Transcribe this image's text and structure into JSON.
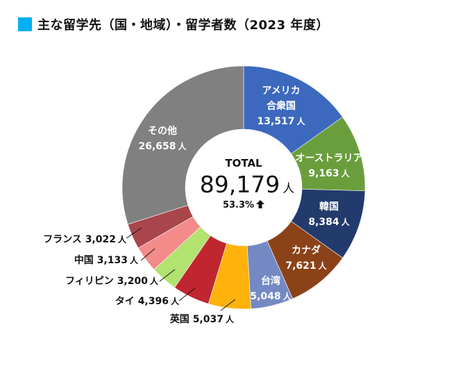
{
  "title": {
    "text": "主な留学先（国・地域）・留学者数（2023 年度）",
    "swatch_color": "#00B0F0"
  },
  "center": {
    "heading": "TOTAL",
    "total": "89,179",
    "unit": "人",
    "change": "53.3%",
    "change_icon": "up-arrow-icon"
  },
  "chart_data": {
    "type": "pie",
    "variant": "donut",
    "title": "主な留学先（国・地域）・留学者数（2023 年度）",
    "unit": "人",
    "total": 89179,
    "total_change_pct": 53.3,
    "start_angle_deg": 0,
    "direction": "clockwise",
    "categories": [
      "アメリカ合衆国",
      "オーストラリア",
      "韓国",
      "カナダ",
      "台湾",
      "英国",
      "タイ",
      "フィリピン",
      "中国",
      "フランス",
      "その他"
    ],
    "values": [
      13517,
      9163,
      8384,
      7621,
      5048,
      5037,
      4396,
      3200,
      3133,
      3022,
      26658
    ],
    "colors": [
      "#3C69BD",
      "#6A9E3D",
      "#223B6C",
      "#8C4218",
      "#7489C3",
      "#FFB20C",
      "#C0262F",
      "#B2E26F",
      "#F38B8B",
      "#A9464B",
      "#808080"
    ],
    "legend": "none (labels on slices / leader lines)"
  },
  "inner_labels": [
    {
      "lines": [
        "アメリカ",
        "合衆国"
      ],
      "value": "13,517",
      "unit": "人"
    },
    {
      "lines": [
        "オーストラリア"
      ],
      "value": "9,163",
      "unit": "人"
    },
    {
      "lines": [
        "韓国"
      ],
      "value": "8,384",
      "unit": "人"
    },
    {
      "lines": [
        "カナダ"
      ],
      "value": "7,621",
      "unit": "人"
    },
    {
      "lines": [
        "台湾"
      ],
      "value": "5,048",
      "unit": "人"
    },
    {
      "lines": [
        "その他"
      ],
      "value": "26,658",
      "unit": "人"
    }
  ],
  "outer_labels": [
    {
      "name": "英国",
      "value": "5,037",
      "unit": "人"
    },
    {
      "name": "タイ",
      "value": "4,396",
      "unit": "人"
    },
    {
      "name": "フィリピン",
      "value": "3,200",
      "unit": "人"
    },
    {
      "name": "中国",
      "value": "3,133",
      "unit": "人"
    },
    {
      "name": "フランス",
      "value": "3,022",
      "unit": "人"
    }
  ]
}
